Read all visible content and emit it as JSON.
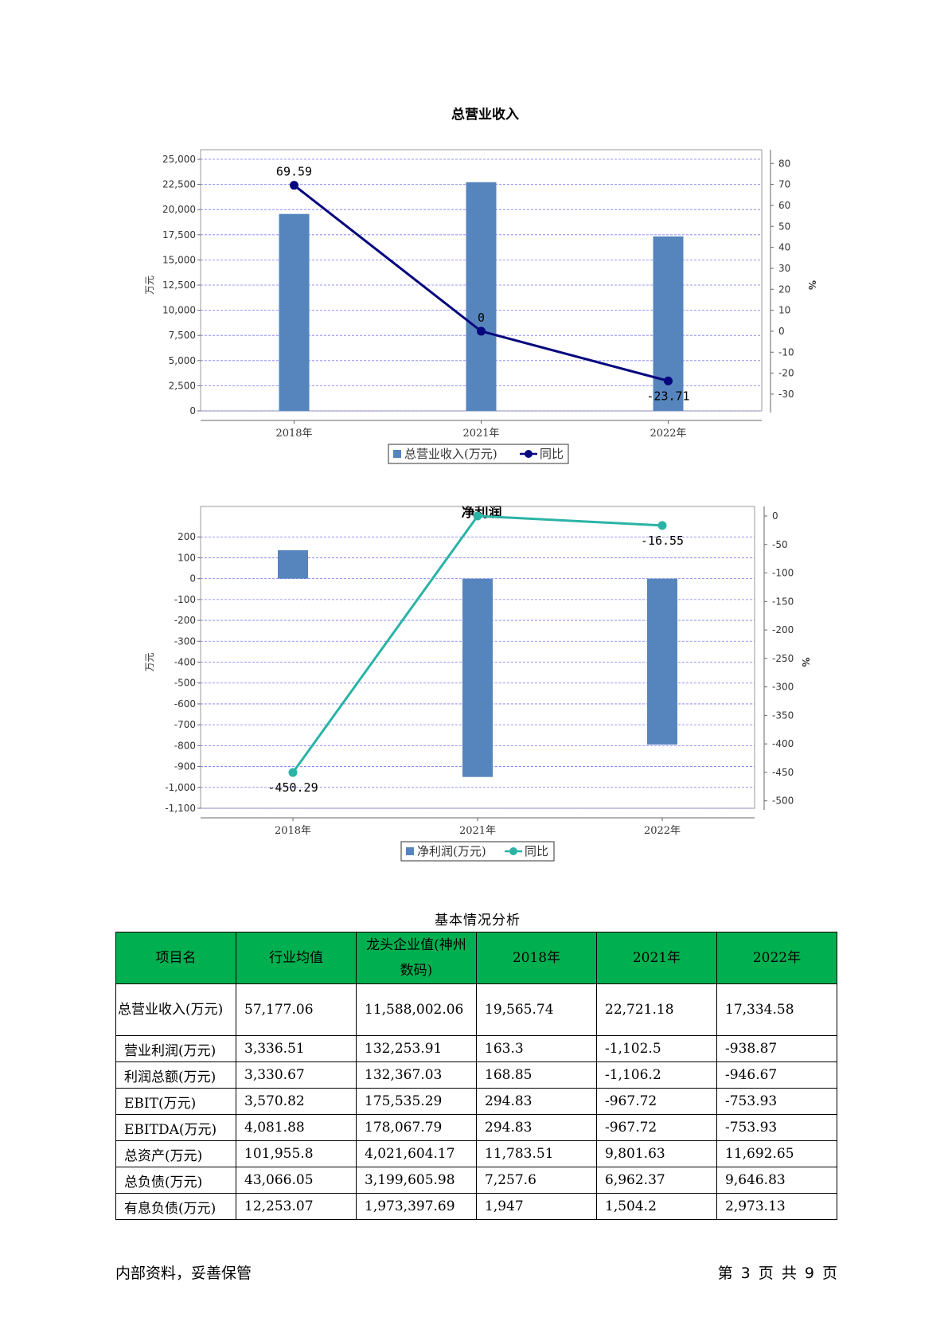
{
  "charts": {
    "revenue": {
      "title": "总营业收入",
      "left_axis_label": "万元",
      "right_axis_label": "%",
      "legend_bar": "总营业收入(万元)",
      "legend_line": "同比",
      "bar_color": "#5585bc",
      "line_color": "#06067e"
    },
    "profit": {
      "title": "净利润",
      "left_axis_label": "万元",
      "right_axis_label": "%",
      "legend_bar": "净利润(万元)",
      "legend_line": "同比",
      "bar_color": "#5585bc",
      "line_color": "#2ab3a6"
    }
  },
  "chart_data": [
    {
      "type": "bar",
      "title": "总营业收入",
      "categories": [
        "2018年",
        "2021年",
        "2022年"
      ],
      "series": [
        {
          "name": "总营业收入(万元)",
          "axis": "left",
          "values": [
            19565.74,
            22721.18,
            17334.58
          ]
        },
        {
          "name": "同比",
          "type": "line",
          "axis": "right",
          "values": [
            69.59,
            0,
            -23.71
          ],
          "labels": [
            "69.59",
            "0",
            "-23.71"
          ]
        }
      ],
      "ylabel": "万元",
      "y2label": "%",
      "ylim": [
        0,
        25000
      ],
      "yticks": [
        0,
        2500,
        5000,
        7500,
        10000,
        12500,
        15000,
        17500,
        20000,
        22500,
        25000
      ],
      "ytick_labels": [
        "0",
        "2,500",
        "5,000",
        "7,500",
        "10,000",
        "12,500",
        "15,000",
        "17,500",
        "20,000",
        "22,500",
        "25,000"
      ],
      "y2lim": [
        -38,
        82
      ],
      "y2ticks": [
        -30,
        -20,
        -10,
        0,
        10,
        20,
        30,
        40,
        50,
        60,
        70,
        80
      ],
      "grid": true,
      "legend": "bottom"
    },
    {
      "type": "bar",
      "title": "净利润",
      "categories": [
        "2018年",
        "2021年",
        "2022年"
      ],
      "series": [
        {
          "name": "净利润(万元)",
          "axis": "left",
          "values": [
            136,
            -950,
            -795
          ]
        },
        {
          "name": "同比",
          "type": "line",
          "axis": "right",
          "values": [
            -450.29,
            0,
            -16.55
          ],
          "labels": [
            "-450.29",
            "",
            "-16.55"
          ]
        }
      ],
      "ylabel": "万元",
      "y2label": "%",
      "ylim": [
        -1100,
        300
      ],
      "yticks": [
        -1100,
        -1000,
        -900,
        -800,
        -700,
        -600,
        -500,
        -400,
        -300,
        -200,
        -100,
        0,
        100,
        200
      ],
      "ytick_labels": [
        "-1,100",
        "-1,000",
        "-900",
        "-800",
        "-700",
        "-600",
        "-500",
        "-400",
        "-300",
        "-200",
        "-100",
        "0",
        "100",
        "200"
      ],
      "y2lim": [
        -513,
        0
      ],
      "y2ticks": [
        -500,
        -450,
        -400,
        -350,
        -300,
        -250,
        -200,
        -150,
        -100,
        -50,
        0
      ],
      "grid": true,
      "legend": "bottom"
    }
  ],
  "table": {
    "caption": "基本情况分析",
    "headers": [
      "项目名",
      "行业均值",
      "龙头企业值(神州数码)",
      "2018年",
      "2021年",
      "2022年"
    ],
    "rows": [
      [
        "总营业收入(万元)",
        "57,177.06",
        "11,588,002.06",
        "19,565.74",
        "22,721.18",
        "17,334.58"
      ],
      [
        "营业利润(万元)",
        "3,336.51",
        "132,253.91",
        "163.3",
        "-1,102.5",
        "-938.87"
      ],
      [
        "利润总额(万元)",
        "3,330.67",
        "132,367.03",
        "168.85",
        "-1,106.2",
        "-946.67"
      ],
      [
        "EBIT(万元)",
        "3,570.82",
        "175,535.29",
        "294.83",
        "-967.72",
        "-753.93"
      ],
      [
        "EBITDA(万元)",
        "4,081.88",
        "178,067.79",
        "294.83",
        "-967.72",
        "-753.93"
      ],
      [
        "总资产(万元)",
        "101,955.8",
        "4,021,604.17",
        "11,783.51",
        "9,801.63",
        "11,692.65"
      ],
      [
        "总负债(万元)",
        "43,066.05",
        "3,199,605.98",
        "7,257.6",
        "6,962.37",
        "9,646.83"
      ],
      [
        "有息负债(万元)",
        "12,253.07",
        "1,973,397.69",
        "1,947",
        "1,504.2",
        "2,973.13"
      ]
    ]
  },
  "footer": {
    "left": "内部资料，妥善保管",
    "right": "第 3 页  共 9 页"
  }
}
